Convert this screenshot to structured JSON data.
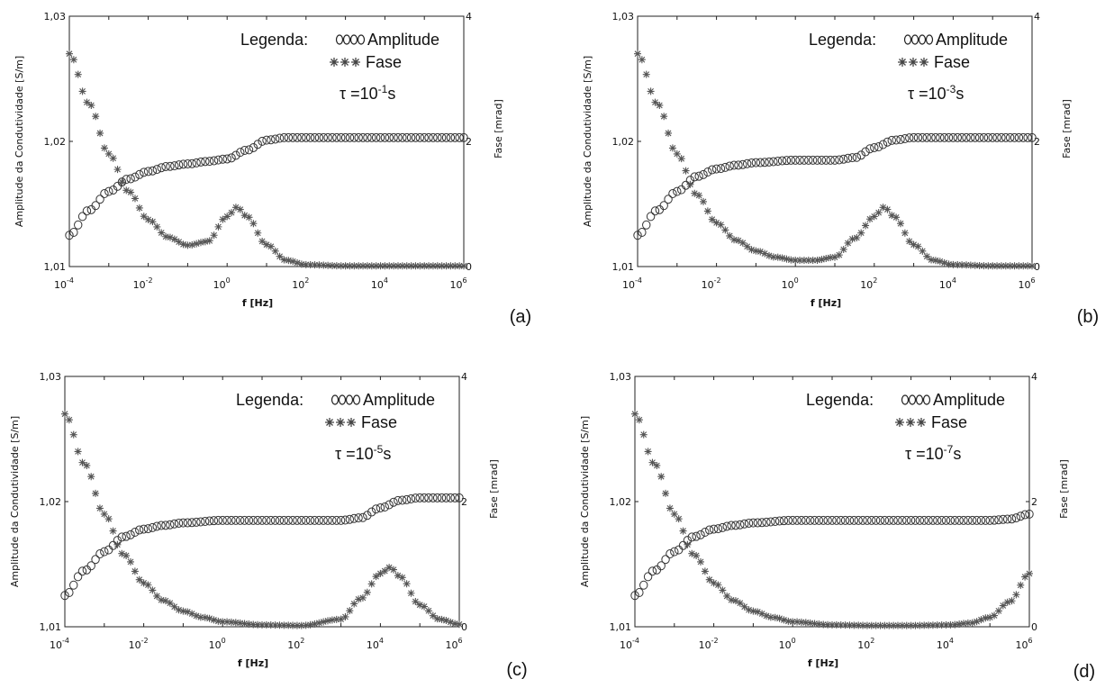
{
  "chart_data": [
    {
      "type": "scatter",
      "panel_label": "(a)",
      "xlabel": "f [Hz]",
      "ylabel_left": "Amplitude da Condutividade [S/m]",
      "ylabel_right": "Fase [mrad]",
      "x_scale": "log",
      "xlim_exp": [
        -4,
        6
      ],
      "x_tick_base": "10",
      "x_tick_exponents": [
        "-4",
        "-2",
        "0",
        "2",
        "4",
        "6"
      ],
      "ylim_left": [
        1.01,
        1.03
      ],
      "y_ticks_left": [
        "1,01",
        "1,02",
        "1,03"
      ],
      "ylim_right": [
        0,
        4
      ],
      "y_ticks_right": [
        "0",
        "2",
        "4"
      ],
      "legend": {
        "title": "Legenda:",
        "amp_label": "Amplitude",
        "phase_label": "Fase"
      },
      "tau_prefix": "τ =10",
      "tau_exp": "-1",
      "tau_suffix": "s",
      "series": [
        {
          "name": "Amplitude",
          "marker": "circle",
          "axis": "left",
          "log10_f": [
            -4,
            -3.5,
            -3,
            -2.5,
            -2,
            -1.5,
            -1,
            -0.5,
            0,
            0.5,
            1,
            1.5,
            2,
            3,
            4,
            5,
            6
          ],
          "values": [
            1.0125,
            1.0145,
            1.016,
            1.017,
            1.0176,
            1.018,
            1.0182,
            1.0184,
            1.0186,
            1.0193,
            1.0201,
            1.0203,
            1.0203,
            1.0203,
            1.0203,
            1.0203,
            1.0203
          ]
        },
        {
          "name": "Fase",
          "marker": "star",
          "axis": "right",
          "log10_f": [
            -4,
            -3.5,
            -3,
            -2.5,
            -2,
            -1.5,
            -1,
            -0.5,
            0,
            0.25,
            0.5,
            1,
            1.5,
            2,
            3,
            4,
            5,
            6
          ],
          "values": [
            3.4,
            2.6,
            1.8,
            1.2,
            0.75,
            0.47,
            0.34,
            0.4,
            0.8,
            0.95,
            0.8,
            0.35,
            0.1,
            0.03,
            0.01,
            0.01,
            0.01,
            0.01
          ]
        }
      ]
    },
    {
      "type": "scatter",
      "panel_label": "(b)",
      "xlabel": "f [Hz]",
      "ylabel_left": "Amplitude da Condutividade [S/m]",
      "ylabel_right": "Fase [mrad]",
      "x_scale": "log",
      "xlim_exp": [
        -4,
        6
      ],
      "x_tick_base": "10",
      "x_tick_exponents": [
        "-4",
        "-2",
        "0",
        "2",
        "4",
        "6"
      ],
      "ylim_left": [
        1.01,
        1.03
      ],
      "y_ticks_left": [
        "1,01",
        "1,02",
        "1,03"
      ],
      "ylim_right": [
        0,
        4
      ],
      "y_ticks_right": [
        "0",
        "2",
        "4"
      ],
      "legend": {
        "title": "Legenda:",
        "amp_label": "Amplitude",
        "phase_label": "Fase"
      },
      "tau_prefix": "τ =10",
      "tau_exp": "-3",
      "tau_suffix": "s",
      "series": [
        {
          "name": "Amplitude",
          "marker": "circle",
          "axis": "left",
          "log10_f": [
            -4,
            -3.5,
            -3,
            -2.5,
            -2,
            -1.5,
            -1,
            0,
            1,
            1.5,
            2,
            2.5,
            3,
            4,
            5,
            6
          ],
          "values": [
            1.0125,
            1.0145,
            1.016,
            1.0172,
            1.0178,
            1.0181,
            1.0183,
            1.0185,
            1.0185,
            1.0187,
            1.0195,
            1.0201,
            1.0203,
            1.0203,
            1.0203,
            1.0203
          ]
        },
        {
          "name": "Fase",
          "marker": "star",
          "axis": "right",
          "log10_f": [
            -4,
            -3.5,
            -3,
            -2.5,
            -2,
            -1.5,
            -1,
            -0.5,
            0,
            0.5,
            1,
            1.5,
            2,
            2.25,
            2.5,
            3,
            3.5,
            4,
            5,
            6
          ],
          "values": [
            3.4,
            2.6,
            1.8,
            1.15,
            0.7,
            0.42,
            0.25,
            0.15,
            0.1,
            0.1,
            0.15,
            0.45,
            0.8,
            0.95,
            0.8,
            0.35,
            0.1,
            0.03,
            0.01,
            0.01
          ]
        }
      ]
    },
    {
      "type": "scatter",
      "panel_label": "(c)",
      "xlabel": "f [Hz]",
      "ylabel_left": "Amplitude da Condutividade [S/m]",
      "ylabel_right": "Fase [mrad]",
      "x_scale": "log",
      "xlim_exp": [
        -4,
        6
      ],
      "x_tick_base": "10",
      "x_tick_exponents": [
        "-4",
        "-2",
        "0",
        "2",
        "4",
        "6"
      ],
      "ylim_left": [
        1.01,
        1.03
      ],
      "y_ticks_left": [
        "1,01",
        "1,02",
        "1,03"
      ],
      "ylim_right": [
        0,
        4
      ],
      "y_ticks_right": [
        "0",
        "2",
        "4"
      ],
      "legend": {
        "title": "Legenda:",
        "amp_label": "Amplitude",
        "phase_label": "Fase"
      },
      "tau_prefix": "τ =10",
      "tau_exp": "-5",
      "tau_suffix": "s",
      "series": [
        {
          "name": "Amplitude",
          "marker": "circle",
          "axis": "left",
          "log10_f": [
            -4,
            -3.5,
            -3,
            -2.5,
            -2,
            -1.5,
            -1,
            0,
            1,
            2,
            3,
            3.5,
            4,
            4.5,
            5,
            6
          ],
          "values": [
            1.0125,
            1.0145,
            1.016,
            1.0172,
            1.0178,
            1.0181,
            1.0183,
            1.0185,
            1.0185,
            1.0185,
            1.0185,
            1.0187,
            1.0195,
            1.0201,
            1.0203,
            1.0203
          ]
        },
        {
          "name": "Fase",
          "marker": "star",
          "axis": "right",
          "log10_f": [
            -4,
            -3.5,
            -3,
            -2.5,
            -2,
            -1.5,
            -1,
            -0.5,
            0,
            1,
            2,
            3,
            3.5,
            4,
            4.25,
            4.5,
            5,
            5.5,
            6
          ],
          "values": [
            3.4,
            2.6,
            1.8,
            1.15,
            0.7,
            0.42,
            0.25,
            0.15,
            0.08,
            0.03,
            0.02,
            0.12,
            0.45,
            0.85,
            0.95,
            0.8,
            0.35,
            0.12,
            0.04
          ]
        }
      ]
    },
    {
      "type": "scatter",
      "panel_label": "(d)",
      "xlabel": "f [Hz]",
      "ylabel_left": "Amplitude da Condutividade [S/m]",
      "ylabel_right": "Fase [mrad]",
      "x_scale": "log",
      "xlim_exp": [
        -4,
        6
      ],
      "x_tick_base": "10",
      "x_tick_exponents": [
        "-4",
        "-2",
        "0",
        "2",
        "4",
        "6"
      ],
      "ylim_left": [
        1.01,
        1.03
      ],
      "y_ticks_left": [
        "1,01",
        "1,02",
        "1,03"
      ],
      "ylim_right": [
        0,
        4
      ],
      "y_ticks_right": [
        "0",
        "2",
        "4"
      ],
      "legend": {
        "title": "Legenda:",
        "amp_label": "Amplitude",
        "phase_label": "Fase"
      },
      "tau_prefix": "τ =10",
      "tau_exp": "-7",
      "tau_suffix": "s",
      "series": [
        {
          "name": "Amplitude",
          "marker": "circle",
          "axis": "left",
          "log10_f": [
            -4,
            -3.5,
            -3,
            -2.5,
            -2,
            -1.5,
            -1,
            0,
            1,
            2,
            3,
            4,
            5,
            5.5,
            6
          ],
          "values": [
            1.0125,
            1.0145,
            1.016,
            1.0172,
            1.0178,
            1.0181,
            1.0183,
            1.0185,
            1.0185,
            1.0185,
            1.0185,
            1.0185,
            1.0185,
            1.0186,
            1.019
          ]
        },
        {
          "name": "Fase",
          "marker": "star",
          "axis": "right",
          "log10_f": [
            -4,
            -3.5,
            -3,
            -2.5,
            -2,
            -1.5,
            -1,
            -0.5,
            0,
            1,
            2,
            3,
            4,
            4.5,
            5,
            5.5,
            6
          ],
          "values": [
            3.4,
            2.6,
            1.8,
            1.15,
            0.7,
            0.42,
            0.25,
            0.15,
            0.08,
            0.03,
            0.02,
            0.02,
            0.03,
            0.06,
            0.15,
            0.4,
            0.85
          ]
        }
      ]
    }
  ]
}
